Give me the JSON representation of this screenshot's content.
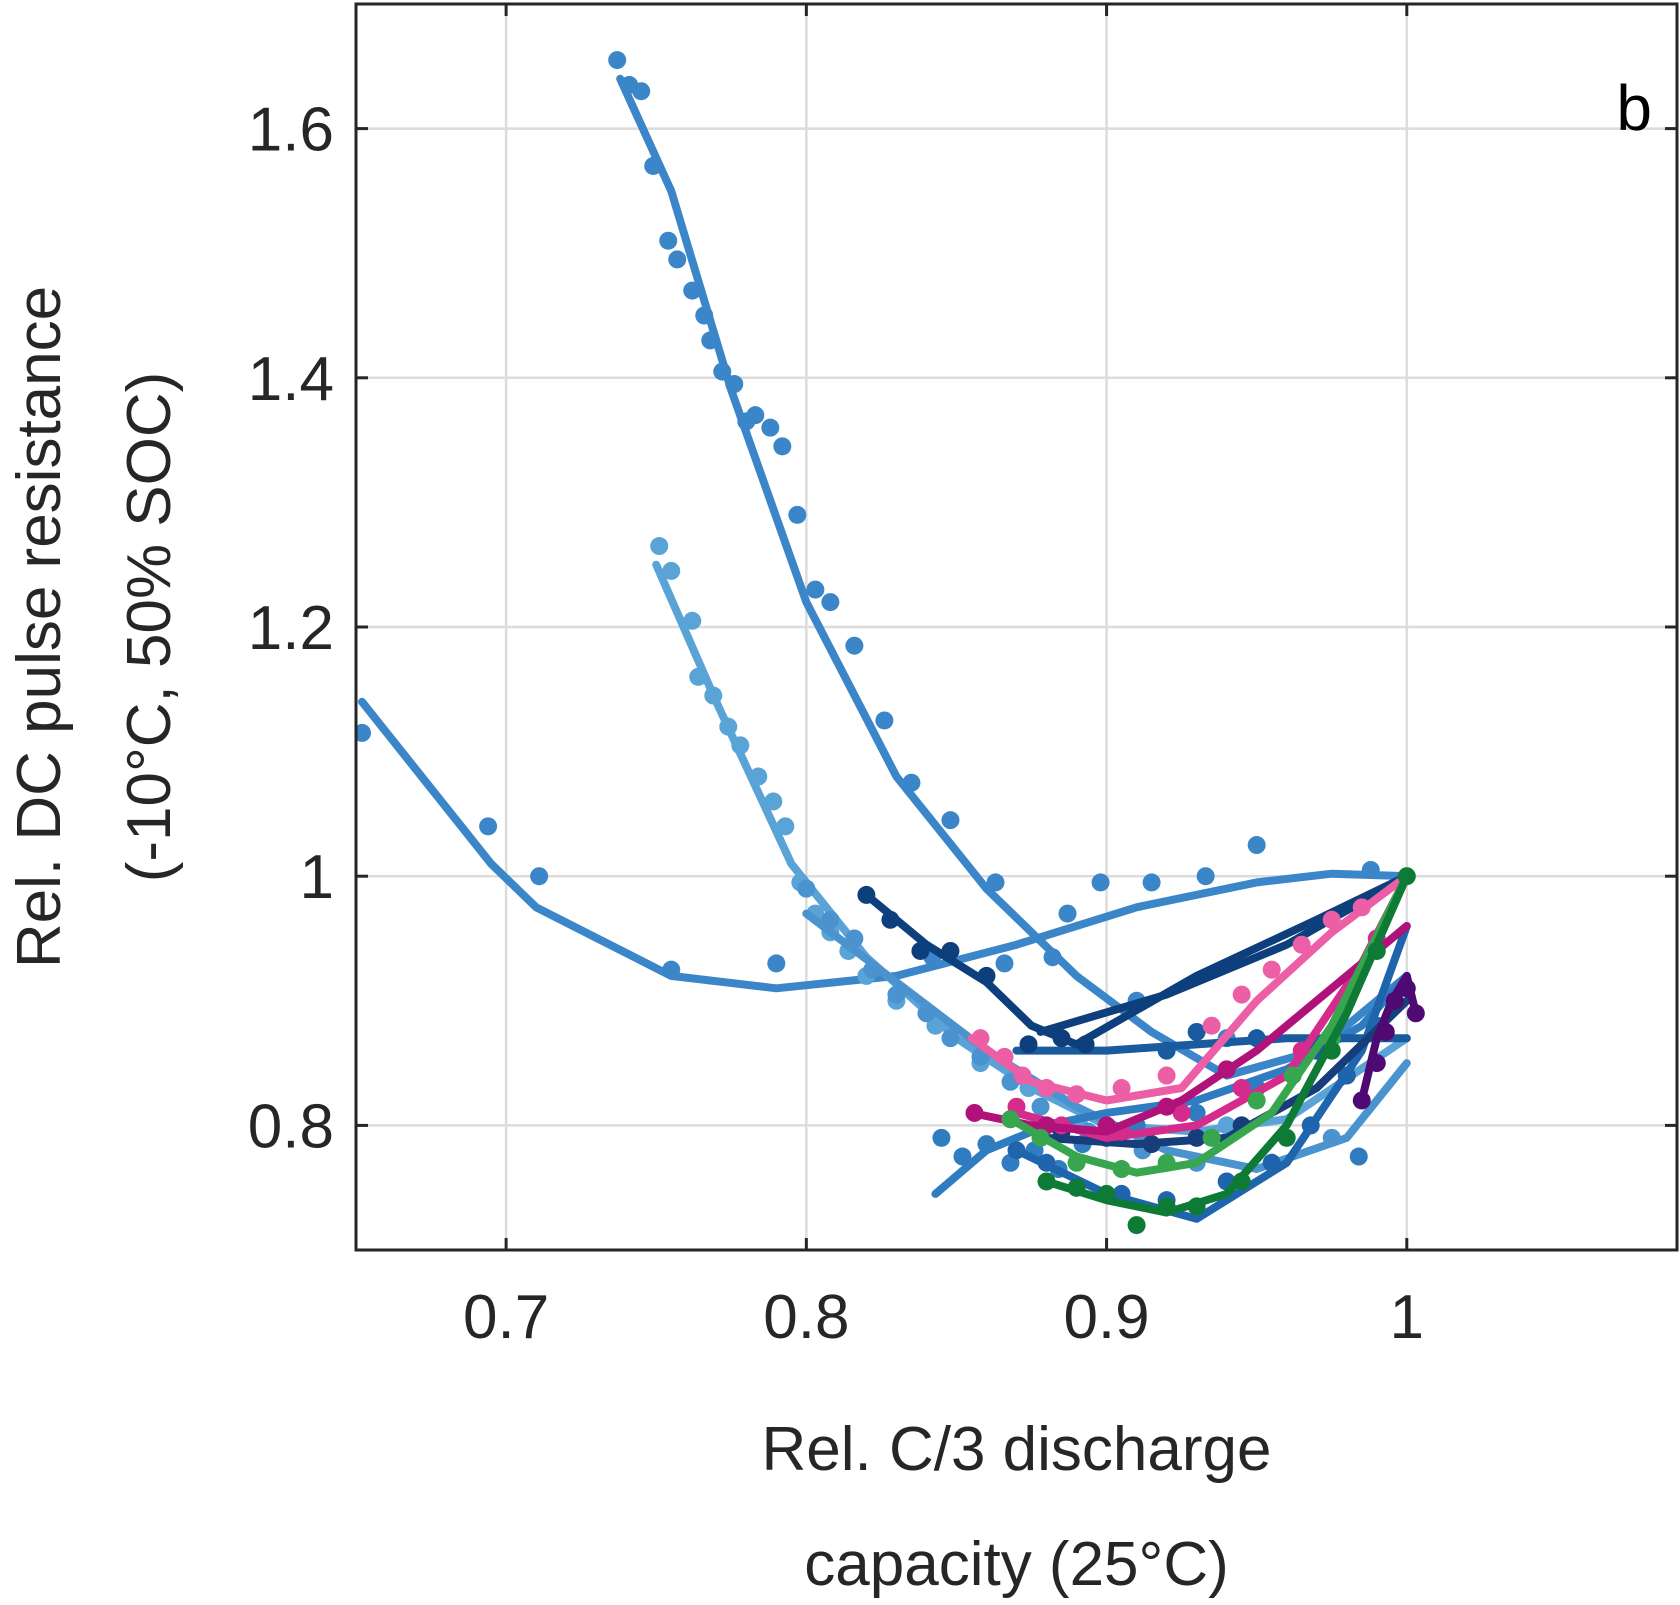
{
  "chart_data": {
    "type": "scatter",
    "panel_label": "b",
    "xlabel_lines": [
      "Rel. C/3 discharge",
      "capacity (25°C)"
    ],
    "ylabel_lines": [
      "Rel. DC pulse resistance",
      "(-10°C, 50% SOC)"
    ],
    "xlim": [
      0.65,
      1.09
    ],
    "ylim": [
      0.7,
      1.7
    ],
    "xticks": [
      0.7,
      0.8,
      0.9,
      1.0
    ],
    "xtick_labels": [
      "0.7",
      "0.8",
      "0.9",
      "1"
    ],
    "yticks": [
      0.8,
      1.0,
      1.2,
      1.4,
      1.6
    ],
    "ytick_labels": [
      "0.8",
      "1",
      "1.2",
      "1.4",
      "1.6"
    ],
    "grid": true,
    "series": [
      {
        "color": "#3a86c8",
        "line": [
          [
            0.652,
            1.14
          ],
          [
            0.695,
            1.01
          ],
          [
            0.71,
            0.975
          ],
          [
            0.755,
            0.92
          ],
          [
            0.79,
            0.91
          ],
          [
            0.83,
            0.92
          ],
          [
            0.87,
            0.945
          ],
          [
            0.91,
            0.975
          ],
          [
            0.95,
            0.995
          ],
          [
            0.975,
            1.002
          ],
          [
            1.0,
            1.0
          ]
        ],
        "points": [
          [
            0.652,
            1.115
          ],
          [
            0.694,
            1.04
          ],
          [
            0.711,
            1.0
          ],
          [
            0.755,
            0.925
          ],
          [
            0.79,
            0.93
          ],
          [
            0.842,
            0.935
          ],
          [
            0.866,
            0.93
          ],
          [
            0.887,
            0.97
          ],
          [
            0.898,
            0.995
          ],
          [
            0.915,
            0.995
          ],
          [
            0.933,
            1.0
          ],
          [
            0.95,
            1.025
          ],
          [
            0.988,
            1.005
          ]
        ]
      },
      {
        "color": "#3a86c8",
        "line": [
          [
            0.738,
            1.64
          ],
          [
            0.755,
            1.55
          ],
          [
            0.775,
            1.39
          ],
          [
            0.8,
            1.22
          ],
          [
            0.83,
            1.08
          ],
          [
            0.86,
            0.99
          ],
          [
            0.89,
            0.92
          ],
          [
            0.915,
            0.875
          ],
          [
            0.94,
            0.84
          ],
          [
            0.97,
            0.86
          ],
          [
            1.0,
            0.92
          ]
        ],
        "points": [
          [
            0.737,
            1.655
          ],
          [
            0.741,
            1.635
          ],
          [
            0.745,
            1.63
          ],
          [
            0.749,
            1.57
          ],
          [
            0.754,
            1.51
          ],
          [
            0.757,
            1.495
          ],
          [
            0.762,
            1.47
          ],
          [
            0.766,
            1.45
          ],
          [
            0.768,
            1.43
          ],
          [
            0.772,
            1.405
          ],
          [
            0.776,
            1.395
          ],
          [
            0.78,
            1.365
          ],
          [
            0.783,
            1.37
          ],
          [
            0.788,
            1.36
          ],
          [
            0.792,
            1.345
          ],
          [
            0.797,
            1.29
          ],
          [
            0.803,
            1.23
          ],
          [
            0.808,
            1.22
          ],
          [
            0.816,
            1.185
          ],
          [
            0.826,
            1.125
          ],
          [
            0.835,
            1.075
          ],
          [
            0.848,
            1.045
          ],
          [
            0.863,
            0.995
          ],
          [
            0.882,
            0.935
          ],
          [
            0.91,
            0.9
          ],
          [
            0.94,
            0.87
          ]
        ]
      },
      {
        "color": "#5aa3d6",
        "line": [
          [
            0.75,
            1.25
          ],
          [
            0.77,
            1.14
          ],
          [
            0.795,
            1.01
          ],
          [
            0.82,
            0.935
          ],
          [
            0.85,
            0.87
          ],
          [
            0.875,
            0.83
          ],
          [
            0.9,
            0.8
          ],
          [
            0.93,
            0.795
          ],
          [
            0.96,
            0.805
          ],
          [
            1.0,
            0.87
          ]
        ],
        "points": [
          [
            0.751,
            1.265
          ],
          [
            0.755,
            1.245
          ],
          [
            0.762,
            1.205
          ],
          [
            0.764,
            1.16
          ],
          [
            0.769,
            1.145
          ],
          [
            0.774,
            1.12
          ],
          [
            0.778,
            1.105
          ],
          [
            0.784,
            1.08
          ],
          [
            0.789,
            1.06
          ],
          [
            0.793,
            1.04
          ],
          [
            0.798,
            0.995
          ],
          [
            0.803,
            0.97
          ],
          [
            0.808,
            0.955
          ],
          [
            0.814,
            0.94
          ],
          [
            0.82,
            0.92
          ],
          [
            0.83,
            0.9
          ],
          [
            0.843,
            0.88
          ],
          [
            0.858,
            0.85
          ],
          [
            0.874,
            0.83
          ],
          [
            0.891,
            0.8
          ],
          [
            0.912,
            0.79
          ],
          [
            0.94,
            0.8
          ]
        ]
      },
      {
        "color": "#4b93cf",
        "line": [
          [
            0.8,
            0.97
          ],
          [
            0.83,
            0.915
          ],
          [
            0.86,
            0.86
          ],
          [
            0.89,
            0.815
          ],
          [
            0.92,
            0.78
          ],
          [
            0.95,
            0.765
          ],
          [
            0.98,
            0.79
          ],
          [
            1.0,
            0.85
          ]
        ],
        "points": [
          [
            0.8,
            0.99
          ],
          [
            0.808,
            0.965
          ],
          [
            0.816,
            0.95
          ],
          [
            0.822,
            0.925
          ],
          [
            0.83,
            0.905
          ],
          [
            0.84,
            0.89
          ],
          [
            0.848,
            0.87
          ],
          [
            0.858,
            0.855
          ],
          [
            0.868,
            0.835
          ],
          [
            0.878,
            0.815
          ],
          [
            0.894,
            0.795
          ],
          [
            0.912,
            0.78
          ],
          [
            0.93,
            0.77
          ],
          [
            0.955,
            0.77
          ],
          [
            0.975,
            0.79
          ]
        ]
      },
      {
        "color": "#2f7cc0",
        "line": [
          [
            0.843,
            0.745
          ],
          [
            0.86,
            0.78
          ],
          [
            0.88,
            0.8
          ],
          [
            0.9,
            0.81
          ],
          [
            0.93,
            0.82
          ],
          [
            0.96,
            0.845
          ],
          [
            0.985,
            0.88
          ],
          [
            1.0,
            0.92
          ]
        ],
        "points": [
          [
            0.845,
            0.79
          ],
          [
            0.852,
            0.775
          ],
          [
            0.86,
            0.785
          ],
          [
            0.868,
            0.77
          ],
          [
            0.876,
            0.78
          ],
          [
            0.884,
            0.765
          ],
          [
            0.892,
            0.785
          ],
          [
            0.91,
            0.8
          ],
          [
            0.93,
            0.81
          ],
          [
            0.95,
            0.83
          ],
          [
            0.97,
            0.86
          ],
          [
            0.984,
            0.775
          ]
        ]
      },
      {
        "color": "#1f65ad",
        "line": [
          [
            0.87,
            0.78
          ],
          [
            0.9,
            0.745
          ],
          [
            0.93,
            0.725
          ],
          [
            0.96,
            0.77
          ],
          [
            0.985,
            0.86
          ],
          [
            1.0,
            0.96
          ]
        ],
        "points": [
          [
            0.87,
            0.78
          ],
          [
            0.88,
            0.77
          ],
          [
            0.89,
            0.75
          ],
          [
            0.905,
            0.745
          ],
          [
            0.92,
            0.74
          ],
          [
            0.94,
            0.755
          ],
          [
            0.955,
            0.77
          ],
          [
            0.968,
            0.8
          ],
          [
            0.98,
            0.84
          ],
          [
            0.99,
            0.88
          ]
        ]
      },
      {
        "color": "#1a5a9e",
        "line": [
          [
            0.87,
            0.86
          ],
          [
            0.9,
            0.86
          ],
          [
            0.93,
            0.865
          ],
          [
            0.96,
            0.87
          ],
          [
            1.0,
            0.87
          ]
        ],
        "points": [
          [
            0.92,
            0.86
          ],
          [
            0.93,
            0.875
          ],
          [
            0.95,
            0.87
          ],
          [
            0.97,
            0.86
          ]
        ]
      },
      {
        "color": "#0d3f7c",
        "line": [
          [
            0.82,
            0.985
          ],
          [
            0.84,
            0.945
          ],
          [
            0.86,
            0.915
          ],
          [
            0.875,
            0.88
          ],
          [
            0.89,
            0.865
          ],
          [
            0.93,
            0.92
          ],
          [
            0.97,
            0.965
          ],
          [
            1.0,
            1.0
          ]
        ],
        "points": [
          [
            0.82,
            0.985
          ],
          [
            0.828,
            0.965
          ],
          [
            0.838,
            0.94
          ],
          [
            0.848,
            0.94
          ],
          [
            0.86,
            0.92
          ],
          [
            0.874,
            0.865
          ],
          [
            0.885,
            0.87
          ],
          [
            0.893,
            0.865
          ]
        ]
      },
      {
        "color": "#0d3f7c",
        "line": [
          [
            0.878,
            0.875
          ],
          [
            0.92,
            0.905
          ],
          [
            0.96,
            0.945
          ],
          [
            1.0,
            1.0
          ]
        ],
        "points": []
      },
      {
        "color": "#173d7a",
        "line": [
          [
            0.88,
            0.79
          ],
          [
            0.91,
            0.785
          ],
          [
            0.94,
            0.79
          ],
          [
            0.97,
            0.83
          ],
          [
            1.0,
            0.9
          ]
        ],
        "points": [
          [
            0.885,
            0.795
          ],
          [
            0.9,
            0.79
          ],
          [
            0.915,
            0.785
          ],
          [
            0.93,
            0.79
          ],
          [
            0.945,
            0.8
          ]
        ]
      },
      {
        "color": "#ec5fa6",
        "line": [
          [
            0.855,
            0.87
          ],
          [
            0.875,
            0.835
          ],
          [
            0.9,
            0.82
          ],
          [
            0.925,
            0.83
          ],
          [
            0.95,
            0.9
          ],
          [
            0.975,
            0.955
          ],
          [
            1.0,
            1.0
          ]
        ],
        "points": [
          [
            0.858,
            0.87
          ],
          [
            0.866,
            0.855
          ],
          [
            0.872,
            0.84
          ],
          [
            0.88,
            0.83
          ],
          [
            0.89,
            0.825
          ],
          [
            0.905,
            0.83
          ],
          [
            0.92,
            0.84
          ],
          [
            0.935,
            0.88
          ],
          [
            0.945,
            0.905
          ],
          [
            0.955,
            0.925
          ],
          [
            0.965,
            0.945
          ],
          [
            0.975,
            0.965
          ],
          [
            0.985,
            0.975
          ]
        ]
      },
      {
        "color": "#d52b8c",
        "line": [
          [
            0.87,
            0.81
          ],
          [
            0.9,
            0.79
          ],
          [
            0.93,
            0.8
          ],
          [
            0.96,
            0.84
          ],
          [
            0.985,
            0.93
          ],
          [
            1.0,
            1.0
          ]
        ],
        "points": [
          [
            0.87,
            0.815
          ],
          [
            0.885,
            0.8
          ],
          [
            0.905,
            0.795
          ],
          [
            0.925,
            0.81
          ],
          [
            0.945,
            0.83
          ],
          [
            0.965,
            0.86
          ],
          [
            0.98,
            0.9
          ],
          [
            0.99,
            0.95
          ]
        ]
      },
      {
        "color": "#b0127a",
        "line": [
          [
            0.855,
            0.81
          ],
          [
            0.875,
            0.8
          ],
          [
            0.9,
            0.795
          ],
          [
            0.925,
            0.82
          ],
          [
            0.95,
            0.86
          ],
          [
            0.975,
            0.91
          ],
          [
            1.0,
            0.96
          ]
        ],
        "points": [
          [
            0.856,
            0.81
          ],
          [
            0.868,
            0.805
          ],
          [
            0.88,
            0.8
          ],
          [
            0.9,
            0.8
          ],
          [
            0.92,
            0.815
          ],
          [
            0.94,
            0.845
          ]
        ]
      },
      {
        "color": "#4e0a72",
        "line": [
          [
            0.985,
            0.82
          ],
          [
            0.99,
            0.87
          ],
          [
            0.995,
            0.9
          ],
          [
            1.0,
            0.92
          ],
          [
            1.003,
            0.89
          ]
        ],
        "points": [
          [
            0.985,
            0.82
          ],
          [
            0.99,
            0.85
          ],
          [
            0.993,
            0.875
          ],
          [
            0.996,
            0.9
          ],
          [
            1.0,
            0.91
          ],
          [
            1.003,
            0.89
          ]
        ]
      },
      {
        "color": "#37a64e",
        "line": [
          [
            0.868,
            0.805
          ],
          [
            0.89,
            0.775
          ],
          [
            0.91,
            0.762
          ],
          [
            0.93,
            0.77
          ],
          [
            0.955,
            0.81
          ],
          [
            0.975,
            0.88
          ],
          [
            1.0,
            1.0
          ]
        ],
        "points": [
          [
            0.868,
            0.805
          ],
          [
            0.878,
            0.79
          ],
          [
            0.89,
            0.77
          ],
          [
            0.905,
            0.765
          ],
          [
            0.92,
            0.77
          ],
          [
            0.935,
            0.79
          ],
          [
            0.95,
            0.82
          ],
          [
            0.962,
            0.84
          ],
          [
            0.975,
            0.87
          ]
        ]
      },
      {
        "color": "#0d7a36",
        "line": [
          [
            0.88,
            0.755
          ],
          [
            0.9,
            0.74
          ],
          [
            0.92,
            0.73
          ],
          [
            0.94,
            0.745
          ],
          [
            0.96,
            0.8
          ],
          [
            0.98,
            0.89
          ],
          [
            1.0,
            1.0
          ]
        ],
        "points": [
          [
            0.88,
            0.755
          ],
          [
            0.89,
            0.75
          ],
          [
            0.9,
            0.745
          ],
          [
            0.91,
            0.72
          ],
          [
            0.92,
            0.735
          ],
          [
            0.93,
            0.735
          ],
          [
            0.945,
            0.755
          ],
          [
            0.96,
            0.79
          ],
          [
            0.975,
            0.86
          ],
          [
            0.99,
            0.94
          ],
          [
            1.0,
            1.0
          ]
        ]
      }
    ]
  }
}
